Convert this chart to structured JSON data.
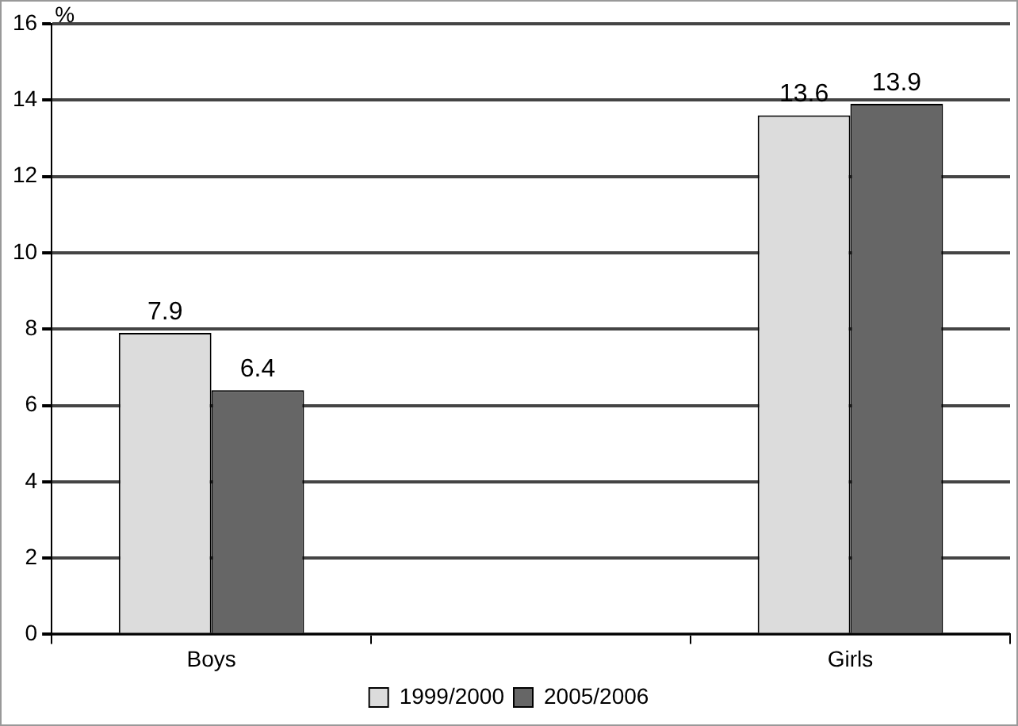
{
  "chart_data": {
    "type": "bar",
    "ylabel": "%",
    "categories": [
      "Boys",
      null,
      "Girls"
    ],
    "series": [
      {
        "name": "1999/2000",
        "color": "#dcdcdc",
        "values": [
          7.9,
          null,
          13.6
        ]
      },
      {
        "name": "2005/2006",
        "color": "#666666",
        "values": [
          6.4,
          null,
          13.9
        ]
      }
    ],
    "ylim": [
      0,
      16
    ],
    "yticks": [
      0,
      2,
      4,
      6,
      8,
      10,
      12,
      14,
      16
    ],
    "grid": "y",
    "legend": "bottom",
    "data_labels": true
  }
}
